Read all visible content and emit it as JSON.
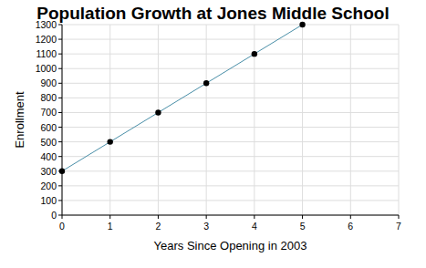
{
  "chart_data": {
    "type": "line",
    "title": "Population Growth at Jones Middle School",
    "x_label": "Years Since Opening in 2003",
    "y_label": "Enrollment",
    "x": [
      0,
      1,
      2,
      3,
      4,
      5
    ],
    "values": [
      300,
      500,
      700,
      900,
      1100,
      1300
    ],
    "xlim": [
      0,
      7
    ],
    "xticks": [
      0,
      1,
      2,
      3,
      4,
      5,
      6,
      7
    ],
    "ylim": [
      0,
      1300
    ],
    "yticks": [
      0,
      100,
      200,
      300,
      400,
      500,
      600,
      700,
      800,
      900,
      1000,
      1100,
      1200,
      1300
    ],
    "grid": true,
    "color": "#4a8fa8",
    "marker": "circle"
  }
}
